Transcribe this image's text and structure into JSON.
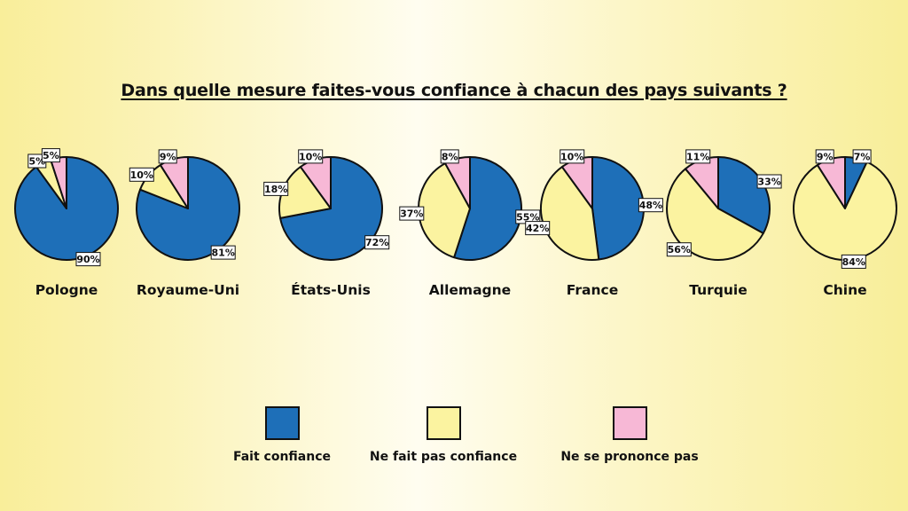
{
  "chart_data": {
    "type": "pie",
    "title": "Dans quelle mesure faites-vous confiance à chacun des pays suivants ?",
    "legend": {
      "position": "bottom",
      "entries": [
        {
          "key": "trust",
          "label": "Fait confiance",
          "color": "#1e6fb8"
        },
        {
          "key": "distrust",
          "label": "Ne fait pas confiance",
          "color": "#fbf3a0"
        },
        {
          "key": "unsure",
          "label": "Ne se prononce pas",
          "color": "#f7b8d6"
        }
      ]
    },
    "pies": [
      {
        "country": "Pologne",
        "values": [
          90,
          5,
          5
        ]
      },
      {
        "country": "Royaume-Uni",
        "values": [
          81,
          10,
          9
        ]
      },
      {
        "country": "États-Unis",
        "values": [
          72,
          18,
          10
        ]
      },
      {
        "country": "Allemagne",
        "values": [
          55,
          37,
          8
        ]
      },
      {
        "country": "France",
        "values": [
          48,
          42,
          10
        ]
      },
      {
        "country": "Turquie",
        "values": [
          33,
          56,
          11
        ]
      },
      {
        "country": "Chine",
        "values": [
          7,
          84,
          9
        ]
      }
    ]
  }
}
